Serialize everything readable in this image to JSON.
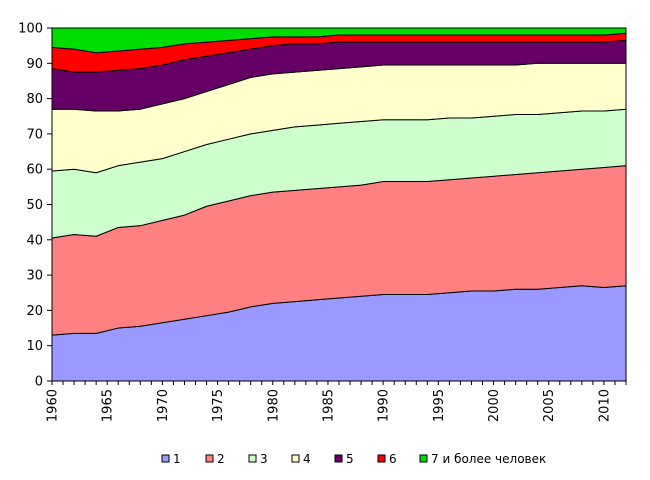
{
  "chart_data": {
    "type": "area",
    "stacked": true,
    "title": "",
    "xlabel": "",
    "ylabel": "",
    "ylim": [
      0,
      100
    ],
    "yticks": [
      0,
      10,
      20,
      30,
      40,
      50,
      60,
      70,
      80,
      90,
      100
    ],
    "xlim": [
      1960,
      2012
    ],
    "xticks": [
      1960,
      1965,
      1970,
      1975,
      1980,
      1985,
      1990,
      1995,
      2000,
      2005,
      2010
    ],
    "grid": false,
    "legend_position": "bottom",
    "x": [
      1960,
      1962,
      1964,
      1966,
      1968,
      1970,
      1972,
      1974,
      1976,
      1978,
      1980,
      1982,
      1984,
      1986,
      1988,
      1990,
      1992,
      1994,
      1996,
      1998,
      2000,
      2002,
      2004,
      2006,
      2008,
      2010,
      2012
    ],
    "cumulative_top": [
      {
        "name": "1",
        "color": "#9999ff",
        "values": [
          13,
          13.5,
          13.5,
          15,
          15.5,
          16.5,
          17.5,
          18.5,
          19.5,
          21,
          22,
          22.5,
          23,
          23.5,
          24,
          24.5,
          24.5,
          24.5,
          25,
          25.5,
          25.5,
          26,
          26,
          26.5,
          27,
          26.5,
          27
        ]
      },
      {
        "name": "2",
        "color": "#ff8080",
        "values": [
          40.5,
          41.5,
          41,
          43.5,
          44,
          45.5,
          47,
          49.5,
          51,
          52.5,
          53.5,
          54,
          54.5,
          55,
          55.5,
          56.5,
          56.5,
          56.5,
          57,
          57.5,
          58,
          58.5,
          59,
          59.5,
          60,
          60.5,
          61
        ]
      },
      {
        "name": "3",
        "color": "#ccffcc",
        "values": [
          59.5,
          60,
          59,
          61,
          62,
          63,
          65,
          67,
          68.5,
          70,
          71,
          72,
          72.5,
          73,
          73.5,
          74,
          74,
          74,
          74.5,
          74.5,
          75,
          75.5,
          75.5,
          76,
          76.5,
          76.5,
          77
        ]
      },
      {
        "name": "4",
        "color": "#ffffcc",
        "values": [
          77,
          77,
          76.5,
          76.5,
          77,
          78.5,
          80,
          82,
          84,
          86,
          87,
          87.5,
          88,
          88.5,
          89,
          89.5,
          89.5,
          89.5,
          89.5,
          89.5,
          89.5,
          89.5,
          90,
          90,
          90,
          90,
          90
        ]
      },
      {
        "name": "5",
        "color": "#660066",
        "values": [
          88.5,
          87.5,
          87.5,
          88,
          88.5,
          89.5,
          91,
          92,
          93,
          94,
          95,
          95.5,
          95.5,
          96,
          96,
          96,
          96,
          96,
          96,
          96,
          96,
          96,
          96,
          96,
          96,
          96,
          96.5
        ]
      },
      {
        "name": "6",
        "color": "#ff0000",
        "values": [
          94.5,
          94,
          93,
          93.5,
          94,
          94.5,
          95.5,
          96,
          96.5,
          97,
          97.5,
          97.5,
          97.5,
          98,
          98,
          98,
          98,
          98,
          98,
          98,
          98,
          98,
          98,
          98,
          98,
          98,
          98.5
        ]
      },
      {
        "name": "7 и более человек",
        "color": "#00dd00",
        "values": [
          100,
          100,
          100,
          100,
          100,
          100,
          100,
          100,
          100,
          100,
          100,
          100,
          100,
          100,
          100,
          100,
          100,
          100,
          100,
          100,
          100,
          100,
          100,
          100,
          100,
          100,
          100
        ]
      }
    ]
  }
}
